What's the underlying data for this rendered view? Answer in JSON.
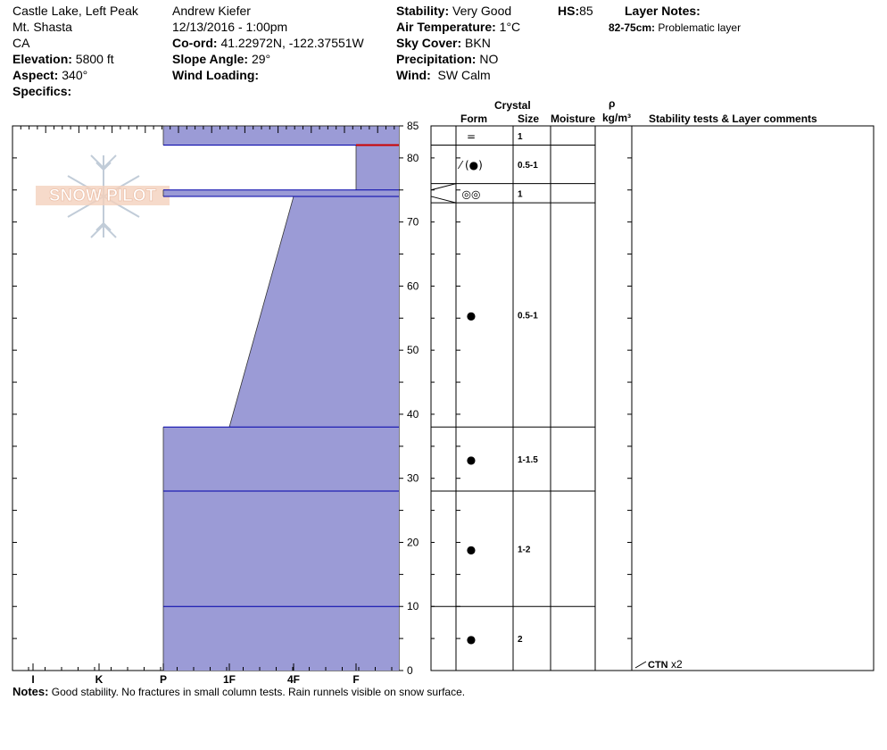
{
  "site": {
    "location": "Castle Lake, Left Peak",
    "range": "Mt. Shasta",
    "state": "CA",
    "elevation_label": "Elevation:",
    "elevation": "5800 ft",
    "aspect_label": "Aspect:",
    "aspect": "340°",
    "specifics_label": "Specifics:"
  },
  "observer": {
    "name": "Andrew Kiefer",
    "datetime": "12/13/2016 - 1:00pm",
    "coord_label": "Co-ord:",
    "coord": "41.22972N, -122.37551W",
    "slope_label": "Slope Angle:",
    "slope": "29°",
    "wind_loading_label": "Wind Loading:"
  },
  "conditions": {
    "stability_label": "Stability:",
    "stability": "Very Good",
    "air_temp_label": "Air Temperature:",
    "air_temp": "1°C",
    "sky_label": "Sky Cover:",
    "sky": "BKN",
    "precip_label": "Precipitation:",
    "precip": "NO",
    "wind_label": "Wind:",
    "wind": "SW Calm"
  },
  "hs": {
    "label": "HS:",
    "value": "85"
  },
  "layer_notes": {
    "label": "Layer Notes:",
    "items": [
      {
        "range": "82-75cm:",
        "text": "Problematic layer"
      }
    ]
  },
  "logo_text": "SNOW PILOT",
  "table_headers": {
    "crystal": "Crystal",
    "form": "Form",
    "size": "Size",
    "moisture": "Moisture",
    "rho": "ρ",
    "density_unit": "kg/m³",
    "comments": "Stability tests & Layer comments"
  },
  "notes": {
    "label": "Notes:",
    "text": "Good stability.  No fractures in small column tests.  Rain runnels visible on snow surface."
  },
  "stability_test": {
    "code": "CTN",
    "count": "x2"
  },
  "colors": {
    "layer_fill": "#9b9bd6",
    "layer_line": "#0000aa",
    "crust_line": "#cc0000"
  },
  "chart_data": {
    "type": "area",
    "title": "",
    "xlabel": "",
    "ylabel": "",
    "ylim": [
      0,
      85
    ],
    "yticks": [
      0,
      10,
      20,
      30,
      40,
      50,
      60,
      70,
      80,
      85
    ],
    "hardness_scale": [
      "I",
      "K",
      "P",
      "1F",
      "4F",
      "F"
    ],
    "hardness_profile": [
      {
        "bottom": 0,
        "top": 38,
        "hardness_bottom": "P",
        "hardness_top": "P"
      },
      {
        "bottom": 38,
        "top": 74,
        "hardness_bottom": "1F",
        "hardness_top": "4F"
      },
      {
        "bottom": 74,
        "top": 75,
        "hardness_bottom": "P",
        "hardness_top": "P"
      },
      {
        "bottom": 75,
        "top": 82,
        "hardness_bottom": "F",
        "hardness_top": "F"
      },
      {
        "bottom": 82,
        "top": 85,
        "hardness_bottom": "P",
        "hardness_top": "P"
      }
    ],
    "layer_boundaries": [
      10,
      28,
      38,
      74,
      75,
      82
    ],
    "crust_marker": 82,
    "layers": [
      {
        "top": 85,
        "bottom": 82,
        "form": "=",
        "size": "1"
      },
      {
        "top": 82,
        "bottom": 76,
        "form": "⁄ (●)",
        "size": "0.5-1"
      },
      {
        "top": 76,
        "bottom": 73,
        "form": "◎◎",
        "size": "1"
      },
      {
        "top": 73,
        "bottom": 38,
        "form": "●",
        "size": "0.5-1"
      },
      {
        "top": 38,
        "bottom": 28,
        "form": "●",
        "size": "1-1.5"
      },
      {
        "top": 28,
        "bottom": 10,
        "form": "●",
        "size": "1-2"
      },
      {
        "top": 10,
        "bottom": 0,
        "form": "●",
        "size": "2"
      }
    ]
  }
}
